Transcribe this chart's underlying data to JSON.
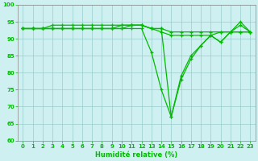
{
  "xlabel": "Humidité relative (%)",
  "background_color": "#cff0f0",
  "grid_color": "#99cccc",
  "line_color": "#00bb00",
  "ylim": [
    60,
    100
  ],
  "xlim": [
    -0.5,
    23.5
  ],
  "yticks": [
    60,
    65,
    70,
    75,
    80,
    85,
    90,
    95,
    100
  ],
  "xticks": [
    0,
    1,
    2,
    3,
    4,
    5,
    6,
    7,
    8,
    9,
    10,
    11,
    12,
    13,
    14,
    15,
    16,
    17,
    18,
    19,
    20,
    21,
    22,
    23
  ],
  "series": [
    [
      93,
      93,
      93,
      93,
      93,
      93,
      93,
      93,
      93,
      93,
      93,
      93,
      93,
      86,
      75,
      67,
      78,
      84,
      88,
      91,
      89,
      92,
      95,
      92
    ],
    [
      93,
      93,
      93,
      94,
      94,
      94,
      94,
      94,
      94,
      94,
      94,
      94,
      94,
      93,
      93,
      67,
      79,
      85,
      88,
      91,
      92,
      92,
      94,
      92
    ],
    [
      93,
      93,
      93,
      93,
      93,
      93,
      93,
      93,
      93,
      93,
      93,
      94,
      94,
      93,
      92,
      91,
      91,
      91,
      91,
      91,
      89,
      92,
      92,
      92
    ],
    [
      93,
      93,
      93,
      93,
      93,
      93,
      93,
      93,
      93,
      93,
      94,
      94,
      94,
      93,
      93,
      92,
      92,
      92,
      92,
      92,
      92,
      92,
      92,
      92
    ]
  ]
}
